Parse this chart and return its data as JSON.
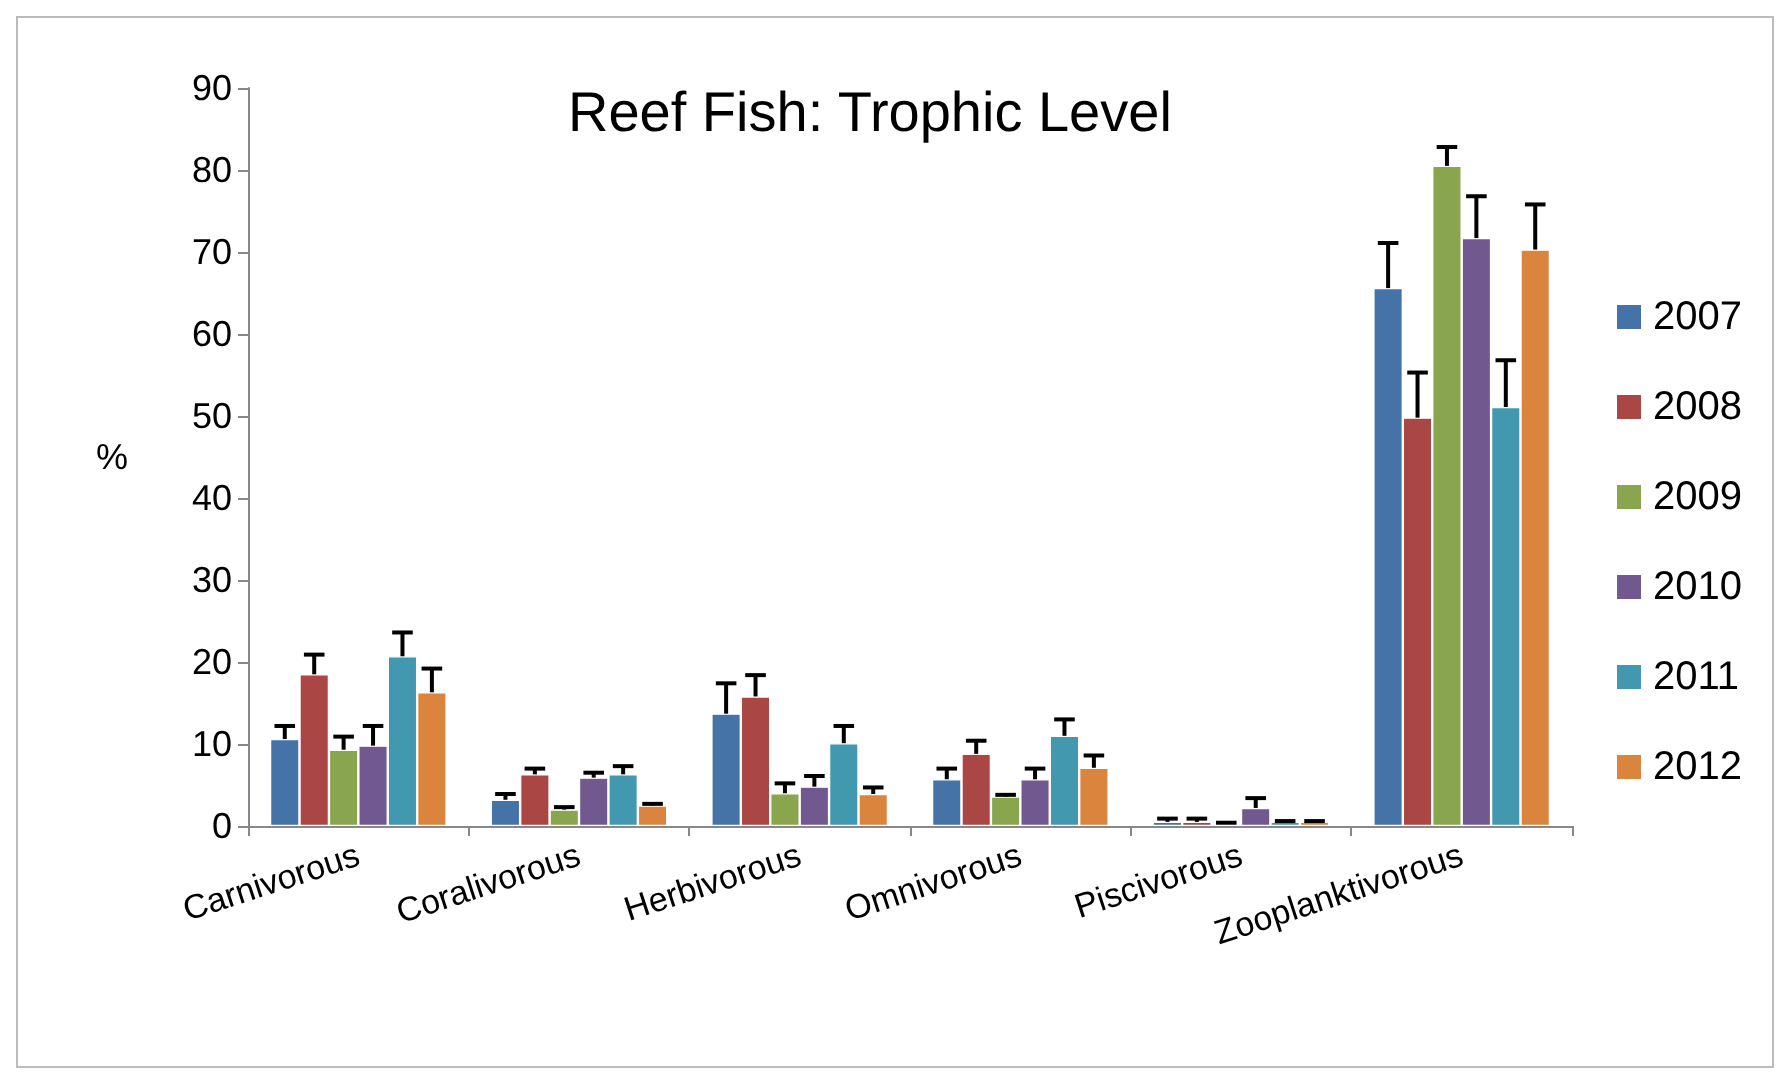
{
  "chart_data": {
    "type": "bar",
    "title": "Reef Fish: Trophic Level",
    "ylabel": "%",
    "categories": [
      "Carnivorous",
      "Coralivorous",
      "Herbivorous",
      "Omnivorous",
      "Piscivorous",
      "Zooplanktivorous"
    ],
    "series": [
      {
        "name": "2007",
        "color": "#4572a7",
        "values": [
          10.6,
          3.2,
          13.7,
          5.7,
          0.5,
          65.6
        ],
        "errors": [
          [
            10.6,
            12.2
          ],
          [
            3.2,
            3.9
          ],
          [
            13.7,
            17.4
          ],
          [
            5.7,
            7.0
          ],
          [
            0.5,
            0.9
          ],
          [
            65.6,
            71.1
          ]
        ]
      },
      {
        "name": "2008",
        "color": "#aa4643",
        "values": [
          18.5,
          6.3,
          15.8,
          8.8,
          0.5,
          49.8
        ],
        "errors": [
          [
            18.5,
            20.9
          ],
          [
            6.3,
            7.0
          ],
          [
            15.8,
            18.4
          ],
          [
            8.8,
            10.4
          ],
          [
            0.5,
            0.9
          ],
          [
            49.8,
            55.3
          ]
        ]
      },
      {
        "name": "2009",
        "color": "#89a54e",
        "values": [
          9.3,
          2.0,
          4.0,
          3.6,
          0.3,
          80.5
        ],
        "errors": [
          [
            9.3,
            10.9
          ],
          [
            2.0,
            2.3
          ],
          [
            4.0,
            5.2
          ],
          [
            3.6,
            3.8
          ],
          [
            0.3,
            0.4
          ],
          [
            80.5,
            82.8
          ]
        ]
      },
      {
        "name": "2010",
        "color": "#71588f",
        "values": [
          9.8,
          5.9,
          4.8,
          5.7,
          2.2,
          71.7
        ],
        "errors": [
          [
            9.8,
            12.2
          ],
          [
            5.9,
            6.5
          ],
          [
            4.8,
            6.1
          ],
          [
            5.7,
            7.0
          ],
          [
            2.2,
            3.4
          ],
          [
            71.7,
            76.8
          ]
        ]
      },
      {
        "name": "2011",
        "color": "#4198af",
        "values": [
          20.7,
          6.3,
          10.1,
          11.0,
          0.5,
          51.1
        ],
        "errors": [
          [
            20.7,
            23.6
          ],
          [
            6.3,
            7.3
          ],
          [
            10.1,
            12.2
          ],
          [
            11.0,
            13.0
          ],
          [
            0.5,
            0.6
          ],
          [
            51.1,
            56.8
          ]
        ]
      },
      {
        "name": "2012",
        "color": "#db843d",
        "values": [
          16.3,
          2.5,
          3.9,
          7.1,
          0.5,
          70.3
        ],
        "errors": [
          [
            16.3,
            19.2
          ],
          [
            2.5,
            2.7
          ],
          [
            3.9,
            4.7
          ],
          [
            7.1,
            8.6
          ],
          [
            0.5,
            0.6
          ],
          [
            70.3,
            75.8
          ]
        ]
      }
    ],
    "ylim": [
      0,
      90
    ],
    "yticks": [
      0,
      10,
      20,
      30,
      40,
      50,
      60,
      70,
      80,
      90
    ],
    "grid": false,
    "legend": "right"
  }
}
